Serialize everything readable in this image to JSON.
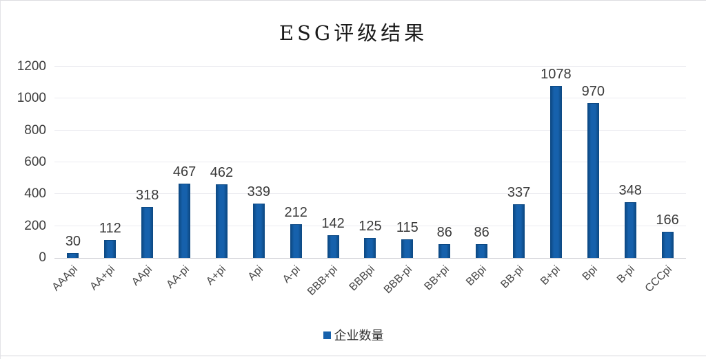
{
  "title": "ESG评级结果",
  "legend": {
    "label": "企业数量"
  },
  "colors": {
    "bar": "#1661ac",
    "bar_border": "#0d4a85",
    "grid": "#ebebf0",
    "axis_line": "#c9c9cf",
    "tick_text": "#3d3d3d",
    "xlabel_text": "#474747"
  },
  "chart_data": {
    "type": "bar",
    "title": "ESG评级结果",
    "categories": [
      "AAApi",
      "AA+pi",
      "AApi",
      "AA-pi",
      "A+pi",
      "Api",
      "A-pi",
      "BBB+pi",
      "BBBpi",
      "BBB-pi",
      "BB+pi",
      "BBpi",
      "BB-pi",
      "B+pi",
      "Bpi",
      "B-pi",
      "CCCpi"
    ],
    "values": [
      30,
      112,
      318,
      467,
      462,
      339,
      212,
      142,
      125,
      115,
      86,
      86,
      337,
      1078,
      970,
      348,
      166
    ],
    "series": [
      {
        "name": "企业数量",
        "values": [
          30,
          112,
          318,
          467,
          462,
          339,
          212,
          142,
          125,
          115,
          86,
          86,
          337,
          1078,
          970,
          348,
          166
        ]
      }
    ],
    "xlabel": "",
    "ylabel": "",
    "ylim": [
      0,
      1200
    ],
    "yticks": [
      0,
      200,
      400,
      600,
      800,
      1000,
      1200
    ],
    "grid": true,
    "legend_position": "bottom",
    "data_labels": true
  }
}
